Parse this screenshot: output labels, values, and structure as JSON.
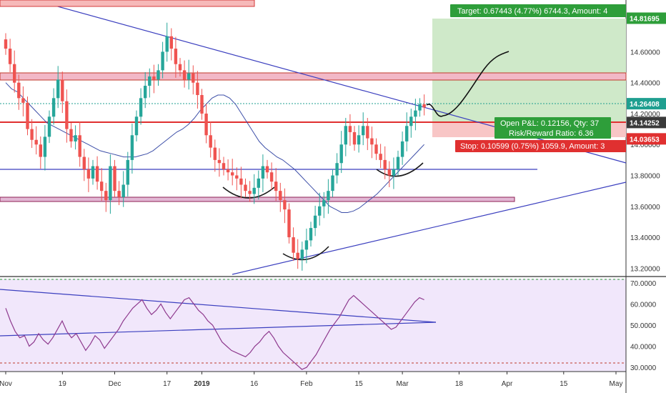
{
  "chart_data": [
    {
      "type": "candlestick",
      "panel": "price",
      "y_axis": {
        "position": "right",
        "ylim": [
          13.16,
          14.87
        ],
        "ticks": [
          "14.60000",
          "14.40000",
          "14.20000",
          "14.00000",
          "13.80000",
          "13.60000",
          "13.40000",
          "13.20000"
        ],
        "tick_values": [
          14.6,
          14.4,
          14.2,
          14.0,
          13.8,
          13.6,
          13.4,
          13.2
        ]
      },
      "x_axis": {
        "ticks": [
          "Nov",
          "19",
          "Dec",
          "17",
          "2019",
          "16",
          "Feb",
          "15",
          "Mar",
          "18",
          "Apr",
          "15",
          "May"
        ],
        "tick_bar_index": [
          0,
          13,
          25,
          37,
          45,
          57,
          69,
          81,
          91,
          104,
          115,
          128,
          140
        ],
        "bold_tick": "2019"
      },
      "price_labels": [
        {
          "text": "14.81695",
          "value": 14.81695,
          "color": "#2e9e3a"
        },
        {
          "text": "14.26408",
          "value": 14.26408,
          "color": "#1f9f90"
        },
        {
          "text": "14.14252",
          "value": 14.14252,
          "color": "#3a3a3a"
        },
        {
          "text": "14.03653",
          "value": 14.03653,
          "color": "#e03030"
        }
      ],
      "trade_annotations": {
        "target": "Target: 0.67443 (4.77%) 6744.3, Amount: 4",
        "open_pnl": "Open P&L: 0.12156, Qty: 37",
        "risk_reward": "Risk/Reward Ratio: 6.36",
        "stop": "Stop: 0.10599 (0.75%) 1059.9, Amount: 3"
      },
      "levels": {
        "target": 14.81695,
        "entry": 14.14252,
        "stop": 14.03653,
        "last": 14.26408
      },
      "candle_bars": 97,
      "series": [
        {
          "name": "",
          "kind": "close",
          "values": [
            14.62,
            14.52,
            14.4,
            14.3,
            14.27,
            14.1,
            14.03,
            14.0,
            13.92,
            14.05,
            14.18,
            14.3,
            14.42,
            14.28,
            14.1,
            14.02,
            14.06,
            13.92,
            13.84,
            13.78,
            13.86,
            13.76,
            13.7,
            13.64,
            13.86,
            13.7,
            13.66,
            13.74,
            13.9,
            14.06,
            14.18,
            14.3,
            14.38,
            14.44,
            14.42,
            14.48,
            14.6,
            14.7,
            14.62,
            14.52,
            14.48,
            14.42,
            14.46,
            14.4,
            14.32,
            14.2,
            14.06,
            13.98,
            13.9,
            13.88,
            13.84,
            13.82,
            13.8,
            13.78,
            13.74,
            13.7,
            13.68,
            13.72,
            13.78,
            13.86,
            13.82,
            13.76,
            13.7,
            13.64,
            13.58,
            13.4,
            13.3,
            13.26,
            13.32,
            13.38,
            13.46,
            13.54,
            13.6,
            13.64,
            13.7,
            13.8,
            13.88,
            14.0,
            14.12,
            14.08,
            14.0,
            14.06,
            14.12,
            14.04,
            14.0,
            13.94,
            13.9,
            13.84,
            13.8,
            13.84,
            13.92,
            14.02,
            14.12,
            14.18,
            14.22,
            14.26,
            14.24
          ]
        },
        {
          "name": "",
          "kind": "moving-average",
          "values": [
            14.4,
            14.36,
            14.34,
            14.3,
            14.26,
            14.22,
            14.18,
            14.14,
            14.12,
            14.1,
            14.08,
            14.06,
            14.04,
            14.02,
            14.0,
            13.98,
            13.96,
            13.95,
            13.94,
            13.93,
            13.92,
            13.92,
            13.92,
            13.93,
            13.94,
            13.96,
            13.99,
            14.02,
            14.05,
            14.08,
            14.1,
            14.13,
            14.17,
            14.22,
            14.26,
            14.3,
            14.32,
            14.32,
            14.3,
            14.26,
            14.2,
            14.14,
            14.08,
            14.02,
            13.98,
            13.95,
            13.92,
            13.9,
            13.87,
            13.84,
            13.8,
            13.76,
            13.72,
            13.68,
            13.64,
            13.6,
            13.58,
            13.56,
            13.56,
            13.57,
            13.59,
            13.62,
            13.65,
            13.68,
            13.72,
            13.76,
            13.8,
            13.84,
            13.88,
            13.92,
            13.96,
            14.0
          ]
        }
      ]
    },
    {
      "type": "line",
      "panel": "oscillator",
      "y_axis": {
        "position": "right",
        "ylim": [
          28,
          73
        ],
        "ticks": [
          "70.0000",
          "60.0000",
          "50.0000",
          "40.0000",
          "30.0000"
        ],
        "tick_values": [
          70,
          60,
          50,
          40,
          30
        ]
      },
      "band": [
        30,
        70
      ],
      "series": [
        {
          "name": "",
          "values": [
            58,
            52,
            47,
            44,
            45,
            40,
            42,
            46,
            43,
            41,
            44,
            48,
            52,
            47,
            44,
            46,
            42,
            38,
            41,
            45,
            43,
            39,
            42,
            45,
            48,
            52,
            55,
            58,
            60,
            62,
            58,
            55,
            57,
            60,
            56,
            53,
            56,
            59,
            62,
            63,
            60,
            57,
            55,
            52,
            50,
            46,
            42,
            40,
            38,
            37,
            36,
            35,
            37,
            40,
            42,
            45,
            47,
            44,
            40,
            37,
            35,
            33,
            31,
            29,
            30,
            33,
            36,
            40,
            44,
            48,
            51,
            54,
            58,
            62,
            64,
            62,
            60,
            58,
            56,
            54,
            52,
            50,
            48,
            49,
            52,
            55,
            58,
            61,
            63,
            62
          ]
        }
      ]
    }
  ]
}
